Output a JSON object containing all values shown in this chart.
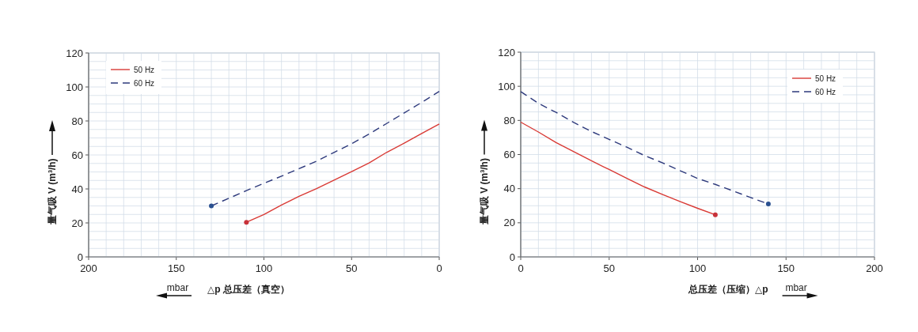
{
  "chart_data": [
    {
      "type": "line",
      "xlabel": "△p  总压差（真空）",
      "ylabel": "量气吸 V (m³/h)",
      "annotations": [
        "mbar"
      ],
      "xlim": [
        200,
        0
      ],
      "ylim": [
        0,
        120
      ],
      "xticks": [
        200,
        {
          "value": 190,
          "label": null
        },
        {
          "value": 180,
          "label": null
        },
        {
          "value": 170,
          "label": null
        },
        {
          "value": 160,
          "label": null
        },
        150,
        {
          "value": 140,
          "label": null
        },
        {
          "value": 130,
          "label": null
        },
        {
          "value": 120,
          "label": null
        },
        {
          "value": 110,
          "label": null
        },
        100,
        {
          "value": 90,
          "label": null
        },
        {
          "value": 80,
          "label": null
        },
        {
          "value": 70,
          "label": null
        },
        {
          "value": 60,
          "label": null
        },
        50,
        {
          "value": 40,
          "label": null
        },
        {
          "value": 30,
          "label": null
        },
        {
          "value": 20,
          "label": null
        },
        {
          "value": 10,
          "label": null
        },
        0
      ],
      "yticks": [
        0,
        {
          "value": 5,
          "label": null
        },
        {
          "value": 10,
          "label": null
        },
        {
          "value": 15,
          "label": null
        },
        20,
        {
          "value": 25,
          "label": null
        },
        {
          "value": 30,
          "label": null
        },
        {
          "value": 35,
          "label": null
        },
        40,
        {
          "value": 45,
          "label": null
        },
        {
          "value": 50,
          "label": null
        },
        {
          "value": 55,
          "label": null
        },
        60,
        {
          "value": 65,
          "label": null
        },
        {
          "value": 70,
          "label": null
        },
        {
          "value": 75,
          "label": null
        },
        80,
        {
          "value": 85,
          "label": null
        },
        {
          "value": 90,
          "label": null
        },
        {
          "value": 95,
          "label": null
        },
        100,
        {
          "value": 105,
          "label": null
        },
        {
          "value": 110,
          "label": null
        },
        {
          "value": 115,
          "label": null
        },
        120
      ],
      "grid": true,
      "legend": "top left",
      "series": [
        {
          "name": "50 Hz",
          "color": "#d93a35",
          "line_style": "solid",
          "x": [
            110,
            100,
            90,
            80,
            70,
            60,
            50,
            40,
            30,
            20,
            10,
            0
          ],
          "values": [
            20.4,
            24.9,
            30.5,
            35.6,
            40.2,
            45.2,
            50.2,
            55.3,
            61.5,
            66.9,
            72.6,
            78.2
          ]
        },
        {
          "name": "60 Hz",
          "color": "#2e3a7c",
          "line_style": "dashed",
          "x": [
            130,
            110,
            100,
            90,
            80,
            70,
            60,
            50,
            40,
            30,
            20,
            10,
            0
          ],
          "values": [
            30.0,
            39.0,
            43.3,
            47.5,
            51.9,
            56.3,
            61.5,
            66.6,
            72.3,
            78.5,
            84.7,
            90.9,
            97.4
          ]
        },
        {
          "type": "scatter",
          "color": "#c8323a",
          "x": [
            110
          ],
          "values": [
            20.4
          ]
        },
        {
          "type": "scatter",
          "color": "#2a5090",
          "x": [
            130
          ],
          "values": [
            30.0
          ]
        }
      ]
    },
    {
      "type": "line",
      "xlabel": "总压差（压缩）△p",
      "ylabel": "量气吸 V (m³/h)",
      "annotations": [
        "mbar"
      ],
      "xlim": [
        0,
        200
      ],
      "ylim": [
        0,
        120
      ],
      "xticks": [
        0,
        {
          "value": 10,
          "label": null
        },
        {
          "value": 20,
          "label": null
        },
        {
          "value": 30,
          "label": null
        },
        {
          "value": 40,
          "label": null
        },
        50,
        {
          "value": 60,
          "label": null
        },
        {
          "value": 70,
          "label": null
        },
        {
          "value": 80,
          "label": null
        },
        {
          "value": 90,
          "label": null
        },
        100,
        {
          "value": 110,
          "label": null
        },
        {
          "value": 120,
          "label": null
        },
        {
          "value": 130,
          "label": null
        },
        {
          "value": 140,
          "label": null
        },
        150,
        {
          "value": 160,
          "label": null
        },
        {
          "value": 170,
          "label": null
        },
        {
          "value": 180,
          "label": null
        },
        {
          "value": 190,
          "label": null
        },
        200
      ],
      "yticks": [
        0,
        {
          "value": 5,
          "label": null
        },
        {
          "value": 10,
          "label": null
        },
        {
          "value": 15,
          "label": null
        },
        20,
        {
          "value": 25,
          "label": null
        },
        {
          "value": 30,
          "label": null
        },
        {
          "value": 35,
          "label": null
        },
        40,
        {
          "value": 45,
          "label": null
        },
        {
          "value": 50,
          "label": null
        },
        {
          "value": 55,
          "label": null
        },
        60,
        {
          "value": 65,
          "label": null
        },
        {
          "value": 70,
          "label": null
        },
        {
          "value": 75,
          "label": null
        },
        80,
        {
          "value": 85,
          "label": null
        },
        {
          "value": 90,
          "label": null
        },
        {
          "value": 95,
          "label": null
        },
        100,
        {
          "value": 105,
          "label": null
        },
        {
          "value": 110,
          "label": null
        },
        {
          "value": 115,
          "label": null
        },
        120
      ],
      "grid": true,
      "legend": "top right",
      "series": [
        {
          "name": "50 Hz",
          "color": "#d93a35",
          "line_style": "solid",
          "x": [
            0,
            10,
            20,
            30,
            40,
            50,
            60,
            70,
            80,
            90,
            100,
            110
          ],
          "values": [
            79.0,
            73.2,
            67.0,
            61.7,
            56.3,
            51.2,
            46.0,
            41.0,
            36.7,
            32.5,
            28.5,
            24.7
          ]
        },
        {
          "name": "60 Hz",
          "color": "#2e3a7c",
          "line_style": "dashed",
          "x": [
            0,
            10,
            20,
            30,
            40,
            50,
            60,
            70,
            80,
            90,
            100,
            110,
            120,
            130,
            140
          ],
          "values": [
            96.9,
            90.0,
            84.7,
            78.8,
            73.5,
            68.9,
            64.3,
            59.4,
            55.2,
            50.6,
            46.0,
            42.5,
            38.7,
            34.8,
            31.0
          ]
        },
        {
          "type": "scatter",
          "color": "#c8323a",
          "x": [
            110
          ],
          "values": [
            24.7
          ]
        },
        {
          "type": "scatter",
          "color": "#2a5090",
          "x": [
            140
          ],
          "values": [
            31.0
          ]
        }
      ]
    }
  ]
}
